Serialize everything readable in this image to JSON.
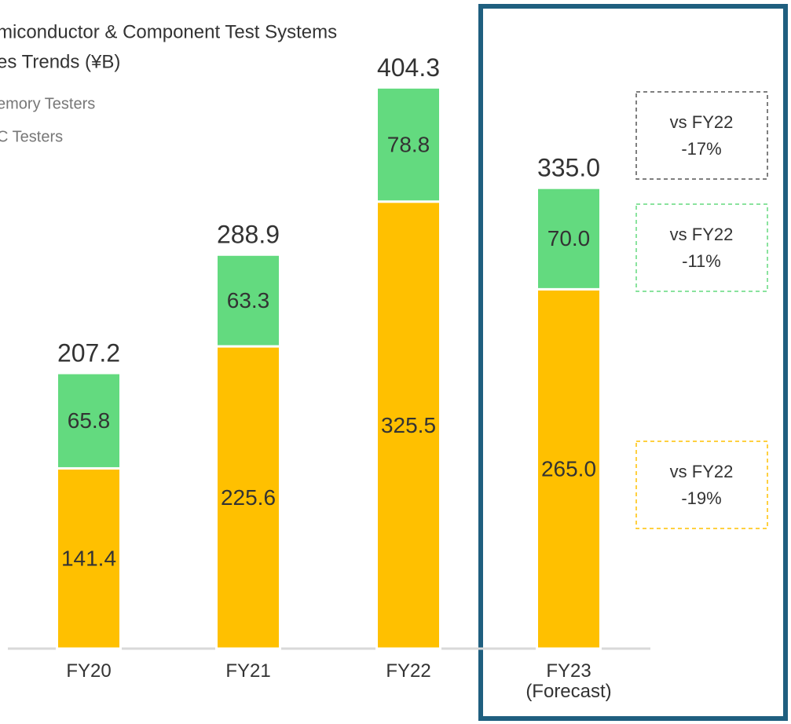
{
  "chart_data": {
    "type": "stacked_bar",
    "title_lines": [
      "miconductor & Component Test Systems",
      "es Trends  (¥B)"
    ],
    "categories": [
      "FY20",
      "FY21",
      "FY22",
      "FY23\n(Forecast)"
    ],
    "series": [
      {
        "name": "C Testers",
        "color": "#ffc000",
        "values": [
          141.4,
          225.6,
          325.5,
          265.0
        ],
        "value_labels": [
          "141.4",
          "225.6",
          "325.5",
          "265.0"
        ]
      },
      {
        "name": "emory Testers",
        "color": "#63da7f",
        "values": [
          65.8,
          63.3,
          78.8,
          70.0
        ],
        "value_labels": [
          "65.8",
          "63.3",
          "78.8",
          "70.0"
        ]
      }
    ],
    "totals": [
      "207.2",
      "288.9",
      "404.3",
      "335.0"
    ],
    "legend_order": [
      1,
      0
    ],
    "ylim": [
      17,
      450
    ],
    "annotations": [
      {
        "lines": [
          "vs FY22",
          "-17%"
        ],
        "color": "#555555"
      },
      {
        "lines": [
          "vs FY22",
          "-11%"
        ],
        "color": "#63da7f"
      },
      {
        "lines": [
          "vs FY22",
          "-19%"
        ],
        "color": "#ffc000"
      }
    ]
  }
}
